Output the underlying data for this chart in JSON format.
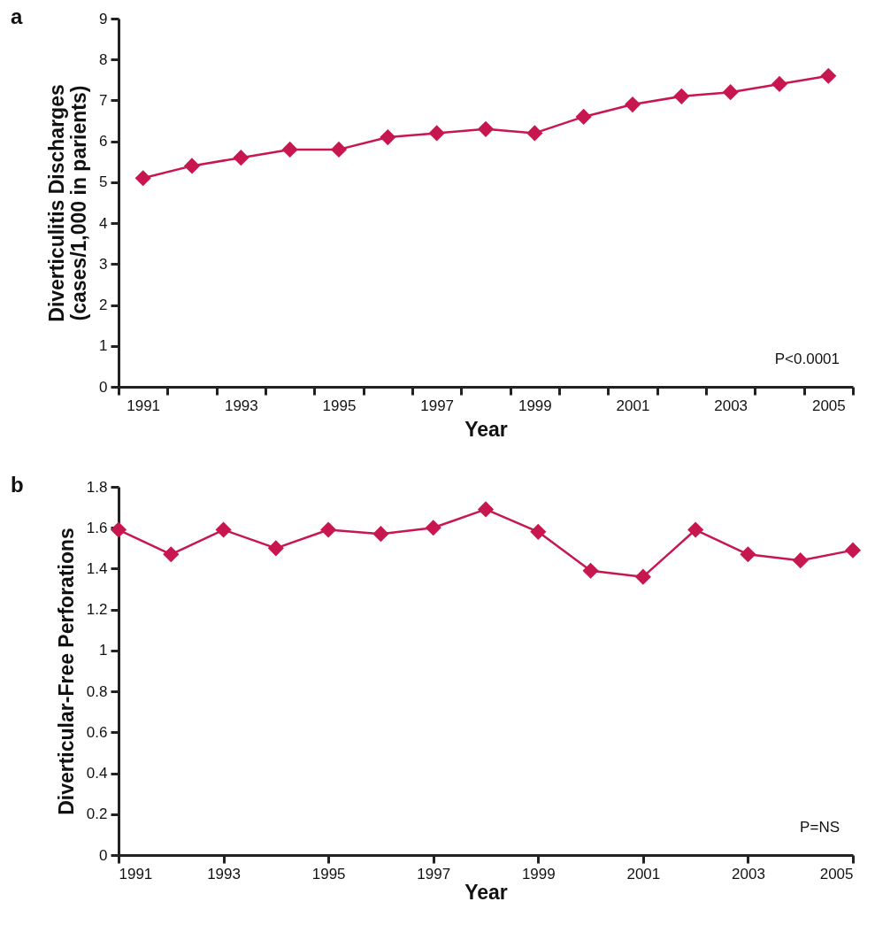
{
  "chart_data": [
    {
      "type": "line",
      "title": "a",
      "categories": [
        "1991",
        null,
        "1993",
        null,
        "1995",
        null,
        "1997",
        null,
        "1999",
        null,
        "2001",
        null,
        "2003",
        null,
        "2005"
      ],
      "series": [
        {
          "color": "#c8174f",
          "values": [
            5.1,
            5.4,
            5.6,
            5.8,
            5.8,
            6.1,
            6.2,
            6.3,
            6.2,
            6.6,
            6.9,
            7.1,
            7.2,
            7.4,
            7.6
          ]
        }
      ],
      "xlabel": "Year",
      "ylabel": "Diverticulitis Discharges\n(cases/1,000 in parients)",
      "ylim": [
        0,
        9
      ],
      "yticks": [
        0,
        1,
        2,
        3,
        4,
        5,
        6,
        7,
        8,
        9
      ],
      "grid": false,
      "marker": "diamond",
      "annotations": [
        "P<0.0001"
      ]
    },
    {
      "type": "line",
      "title": "b",
      "x": [
        1991,
        1992,
        1993,
        1994,
        1995,
        1996,
        1997,
        1998,
        1999,
        2000,
        2001,
        2002,
        2003,
        2004,
        2005
      ],
      "series": [
        {
          "color": "#c8174f",
          "values": [
            1.59,
            1.47,
            1.59,
            1.5,
            1.59,
            1.57,
            1.6,
            1.69,
            1.58,
            1.39,
            1.36,
            1.59,
            1.47,
            1.44,
            1.49
          ]
        }
      ],
      "xlabel": "Year",
      "ylabel": "Diverticular-Free Perforations",
      "xlim": [
        1991,
        2005
      ],
      "xticks": [
        1991,
        1993,
        1995,
        1997,
        1999,
        2001,
        2003,
        2005
      ],
      "ylim": [
        0,
        1.8
      ],
      "yticks": [
        0,
        0.2,
        0.4,
        0.6,
        0.8,
        1,
        1.2,
        1.4,
        1.6,
        1.8
      ],
      "grid": false,
      "marker": "diamond",
      "annotations": [
        "P=NS"
      ]
    }
  ]
}
